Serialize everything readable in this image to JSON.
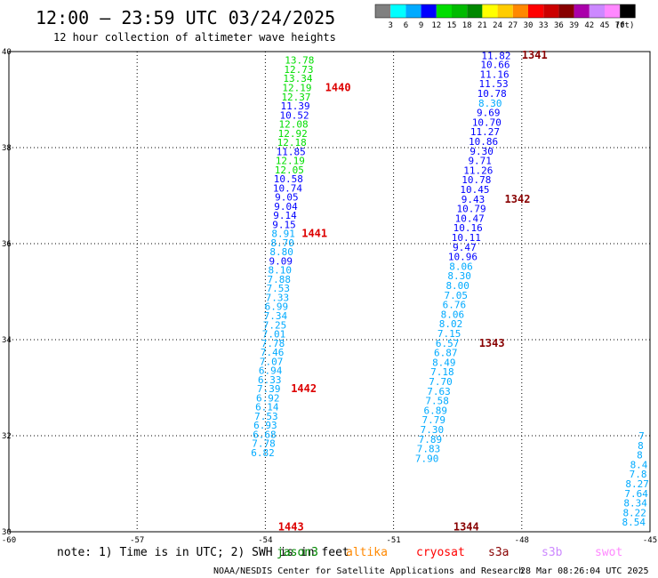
{
  "title": "12:00 – 23:59 UTC 03/24/2025",
  "subtitle": "12 hour collection of altimeter wave heights",
  "footer": {
    "note": "note:  1) Time is in UTC; 2) SWH is in feet",
    "credit": "NOAA/NESDIS Center for Satellite Applications and Research",
    "timestamp": "28 Mar 08:26:04 UTC 2025"
  },
  "colorbar": {
    "unit": "(ft)",
    "colors": [
      "#808080",
      "#00ffff",
      "#00aaff",
      "#0000ff",
      "#00dd00",
      "#00bb00",
      "#008800",
      "#ffff00",
      "#ffcc00",
      "#ff8800",
      "#ff0000",
      "#cc0000",
      "#880000",
      "#aa00aa",
      "#cc88ff",
      "#ff88ff",
      "#000000"
    ],
    "labels": [
      "3",
      "6",
      "9",
      "12",
      "15",
      "18",
      "21",
      "24",
      "27",
      "30",
      "33",
      "36",
      "39",
      "42",
      "45",
      "70"
    ]
  },
  "missions": [
    {
      "name": "jason3",
      "color": "#008800"
    },
    {
      "name": "altika",
      "color": "#ff8800"
    },
    {
      "name": "cryosat",
      "color": "#ff0000"
    },
    {
      "name": "s3a",
      "color": "#880000"
    },
    {
      "name": "s3b",
      "color": "#cc88ff"
    },
    {
      "name": "swot",
      "color": "#ff88ff"
    }
  ],
  "chart_data": {
    "type": "scatter",
    "xlim": [
      -60,
      -45
    ],
    "ylim": [
      30,
      40
    ],
    "x_ticks": [
      -60,
      -57,
      -54,
      -51,
      -48,
      -45
    ],
    "y_ticks": [
      30,
      32,
      34,
      36,
      38,
      40
    ],
    "grid": true,
    "tracks": [
      {
        "name": "track-1",
        "points": [
          {
            "x": -53.2,
            "y": 39.82,
            "v": "13.78"
          },
          {
            "x": -53.22,
            "y": 39.63,
            "v": "12.73"
          },
          {
            "x": -53.24,
            "y": 39.44,
            "v": "13.34"
          },
          {
            "x": -53.26,
            "y": 39.25,
            "v": "12.19"
          },
          {
            "x": -53.28,
            "y": 39.06,
            "v": "12.37"
          },
          {
            "x": -53.3,
            "y": 38.87,
            "v": "11.39"
          },
          {
            "x": -53.32,
            "y": 38.68,
            "v": "10.52"
          },
          {
            "x": -53.34,
            "y": 38.49,
            "v": "12.08"
          },
          {
            "x": -53.36,
            "y": 38.3,
            "v": "12.92"
          },
          {
            "x": -53.38,
            "y": 38.11,
            "v": "12.18"
          },
          {
            "x": -53.4,
            "y": 37.92,
            "v": "11.85"
          },
          {
            "x": -53.42,
            "y": 37.73,
            "v": "12.19"
          },
          {
            "x": -53.44,
            "y": 37.54,
            "v": "12.05"
          },
          {
            "x": -53.46,
            "y": 37.35,
            "v": "10.58"
          },
          {
            "x": -53.48,
            "y": 37.16,
            "v": "10.74"
          },
          {
            "x": -53.5,
            "y": 36.97,
            "v": "9.05"
          },
          {
            "x": -53.52,
            "y": 36.78,
            "v": "9.04"
          },
          {
            "x": -53.54,
            "y": 36.59,
            "v": "9.14"
          },
          {
            "x": -53.56,
            "y": 36.4,
            "v": "9.15"
          },
          {
            "x": -53.58,
            "y": 36.21,
            "v": "8.91"
          },
          {
            "x": -53.6,
            "y": 36.02,
            "v": "8.70"
          },
          {
            "x": -53.62,
            "y": 35.83,
            "v": "8.80"
          },
          {
            "x": -53.64,
            "y": 35.64,
            "v": "9.09"
          },
          {
            "x": -53.66,
            "y": 35.45,
            "v": "8.10"
          },
          {
            "x": -53.68,
            "y": 35.26,
            "v": "7.88"
          },
          {
            "x": -53.7,
            "y": 35.07,
            "v": "7.53"
          },
          {
            "x": -53.72,
            "y": 34.88,
            "v": "7.33"
          },
          {
            "x": -53.74,
            "y": 34.69,
            "v": "6.99"
          },
          {
            "x": -53.76,
            "y": 34.5,
            "v": "7.34"
          },
          {
            "x": -53.78,
            "y": 34.31,
            "v": "7.25"
          },
          {
            "x": -53.8,
            "y": 34.12,
            "v": "7.01"
          },
          {
            "x": -53.82,
            "y": 33.93,
            "v": "7.78"
          },
          {
            "x": -53.84,
            "y": 33.74,
            "v": "7.46"
          },
          {
            "x": -53.86,
            "y": 33.55,
            "v": "7.07"
          },
          {
            "x": -53.88,
            "y": 33.36,
            "v": "6.94"
          },
          {
            "x": -53.9,
            "y": 33.17,
            "v": "6.33"
          },
          {
            "x": -53.92,
            "y": 32.98,
            "v": "7.39"
          },
          {
            "x": -53.94,
            "y": 32.79,
            "v": "6.92"
          },
          {
            "x": -53.96,
            "y": 32.6,
            "v": "6.14"
          },
          {
            "x": -53.98,
            "y": 32.41,
            "v": "7.53"
          },
          {
            "x": -54.0,
            "y": 32.22,
            "v": "6.93"
          },
          {
            "x": -54.02,
            "y": 32.03,
            "v": "6.68"
          },
          {
            "x": -54.04,
            "y": 31.84,
            "v": "7.78"
          },
          {
            "x": -54.06,
            "y": 31.65,
            "v": "6.82"
          }
        ]
      },
      {
        "name": "track-2",
        "points": [
          {
            "x": -48.6,
            "y": 39.92,
            "v": "11.82"
          },
          {
            "x": -48.62,
            "y": 39.73,
            "v": "10.66"
          },
          {
            "x": -48.64,
            "y": 39.53,
            "v": "11.16"
          },
          {
            "x": -48.66,
            "y": 39.33,
            "v": "11.53"
          },
          {
            "x": -48.7,
            "y": 39.13,
            "v": "10.78"
          },
          {
            "x": -48.74,
            "y": 38.93,
            "v": "8.30"
          },
          {
            "x": -48.78,
            "y": 38.73,
            "v": "9.69"
          },
          {
            "x": -48.82,
            "y": 38.53,
            "v": "10.70"
          },
          {
            "x": -48.86,
            "y": 38.33,
            "v": "11.27"
          },
          {
            "x": -48.9,
            "y": 38.13,
            "v": "10.86"
          },
          {
            "x": -48.94,
            "y": 37.93,
            "v": "9.30"
          },
          {
            "x": -48.98,
            "y": 37.73,
            "v": "9.71"
          },
          {
            "x": -49.02,
            "y": 37.53,
            "v": "11.26"
          },
          {
            "x": -49.06,
            "y": 37.33,
            "v": "10.78"
          },
          {
            "x": -49.1,
            "y": 37.13,
            "v": "10.45"
          },
          {
            "x": -49.14,
            "y": 36.93,
            "v": "9.43"
          },
          {
            "x": -49.18,
            "y": 36.73,
            "v": "10.79"
          },
          {
            "x": -49.22,
            "y": 36.53,
            "v": "10.47"
          },
          {
            "x": -49.26,
            "y": 36.33,
            "v": "10.16"
          },
          {
            "x": -49.3,
            "y": 36.13,
            "v": "10.11"
          },
          {
            "x": -49.34,
            "y": 35.93,
            "v": "9.47"
          },
          {
            "x": -49.38,
            "y": 35.73,
            "v": "10.96"
          },
          {
            "x": -49.42,
            "y": 35.53,
            "v": "8.06"
          },
          {
            "x": -49.46,
            "y": 35.33,
            "v": "8.30"
          },
          {
            "x": -49.5,
            "y": 35.13,
            "v": "8.00"
          },
          {
            "x": -49.54,
            "y": 34.93,
            "v": "7.05"
          },
          {
            "x": -49.58,
            "y": 34.73,
            "v": "6.76"
          },
          {
            "x": -49.62,
            "y": 34.53,
            "v": "8.06"
          },
          {
            "x": -49.66,
            "y": 34.33,
            "v": "8.02"
          },
          {
            "x": -49.7,
            "y": 34.13,
            "v": "7.15"
          },
          {
            "x": -49.74,
            "y": 33.93,
            "v": "6.57"
          },
          {
            "x": -49.78,
            "y": 33.73,
            "v": "6.87"
          },
          {
            "x": -49.82,
            "y": 33.53,
            "v": "8.49"
          },
          {
            "x": -49.86,
            "y": 33.33,
            "v": "7.18"
          },
          {
            "x": -49.9,
            "y": 33.13,
            "v": "7.70"
          },
          {
            "x": -49.94,
            "y": 32.93,
            "v": "7.63"
          },
          {
            "x": -49.98,
            "y": 32.73,
            "v": "7.58"
          },
          {
            "x": -50.02,
            "y": 32.53,
            "v": "6.89"
          },
          {
            "x": -50.06,
            "y": 32.33,
            "v": "7.79"
          },
          {
            "x": -50.1,
            "y": 32.13,
            "v": "7.30"
          },
          {
            "x": -50.14,
            "y": 31.93,
            "v": "7.89"
          },
          {
            "x": -50.18,
            "y": 31.73,
            "v": "7.83"
          },
          {
            "x": -50.22,
            "y": 31.53,
            "v": "7.90"
          }
        ]
      },
      {
        "name": "track-3",
        "points": [
          {
            "x": -45.2,
            "y": 32.0,
            "v": "7"
          },
          {
            "x": -45.22,
            "y": 31.8,
            "v": "8"
          },
          {
            "x": -45.24,
            "y": 31.6,
            "v": "8"
          },
          {
            "x": -45.26,
            "y": 31.4,
            "v": "8.4"
          },
          {
            "x": -45.28,
            "y": 31.2,
            "v": "7.8"
          },
          {
            "x": -45.3,
            "y": 31.0,
            "v": "8.27"
          },
          {
            "x": -45.32,
            "y": 30.8,
            "v": "7.64"
          },
          {
            "x": -45.34,
            "y": 30.6,
            "v": "8.34"
          },
          {
            "x": -45.36,
            "y": 30.4,
            "v": "8.22"
          },
          {
            "x": -45.38,
            "y": 30.2,
            "v": "8.54"
          }
        ]
      }
    ],
    "time_labels": [
      {
        "x": -52.3,
        "y": 39.25,
        "text": "1440",
        "color": "#dd0000"
      },
      {
        "x": -52.85,
        "y": 36.21,
        "text": "1441",
        "color": "#dd0000"
      },
      {
        "x": -53.1,
        "y": 32.98,
        "text": "1442",
        "color": "#dd0000"
      },
      {
        "x": -53.4,
        "y": 30.1,
        "text": "1443",
        "color": "#dd0000"
      },
      {
        "x": -47.7,
        "y": 39.93,
        "text": "1341",
        "color": "#880000"
      },
      {
        "x": -48.1,
        "y": 36.93,
        "text": "1342",
        "color": "#880000"
      },
      {
        "x": -48.7,
        "y": 33.93,
        "text": "1343",
        "color": "#880000"
      },
      {
        "x": -49.3,
        "y": 30.1,
        "text": "1344",
        "color": "#880000"
      }
    ]
  }
}
